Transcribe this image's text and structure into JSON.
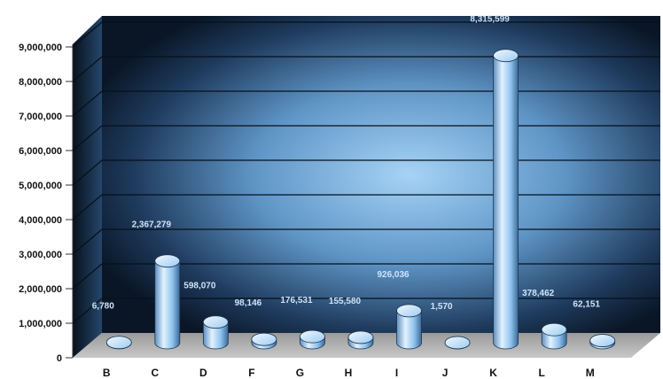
{
  "chart_data": {
    "type": "bar",
    "style": "3d-cylinder",
    "title": "",
    "xlabel": "",
    "ylabel": "",
    "categories": [
      "B",
      "C",
      "D",
      "F",
      "G",
      "H",
      "I",
      "J",
      "K",
      "L",
      "M"
    ],
    "values": [
      6780,
      2367279,
      598070,
      98146,
      176531,
      155580,
      926036,
      1570,
      8315599,
      378462,
      62151
    ],
    "data_labels": [
      "6,780",
      "2,367,279",
      "598,070",
      "98,146",
      "176,531",
      "155,580",
      "926,036",
      "1,570",
      "8,315,599",
      "378,462",
      "62,151"
    ],
    "ylim": [
      0,
      9000000
    ],
    "yticks": [
      0,
      1000000,
      2000000,
      3000000,
      4000000,
      5000000,
      6000000,
      7000000,
      8000000,
      9000000
    ],
    "ytick_labels": [
      "0",
      "1,000,000",
      "2,000,000",
      "3,000,000",
      "4,000,000",
      "5,000,000",
      "6,000,000",
      "7,000,000",
      "8,000,000",
      "9,000,000"
    ],
    "grid": true,
    "legend": "none",
    "colors": {
      "bar_light": "#d6ecff",
      "bar_mid": "#8dc3ee",
      "bar_dark": "#3f6f9f",
      "wall_center": "#9ccbf0",
      "wall_edge": "#0b1a2c",
      "floor": "#a8a8a8",
      "label": "#cfe3f7"
    }
  }
}
